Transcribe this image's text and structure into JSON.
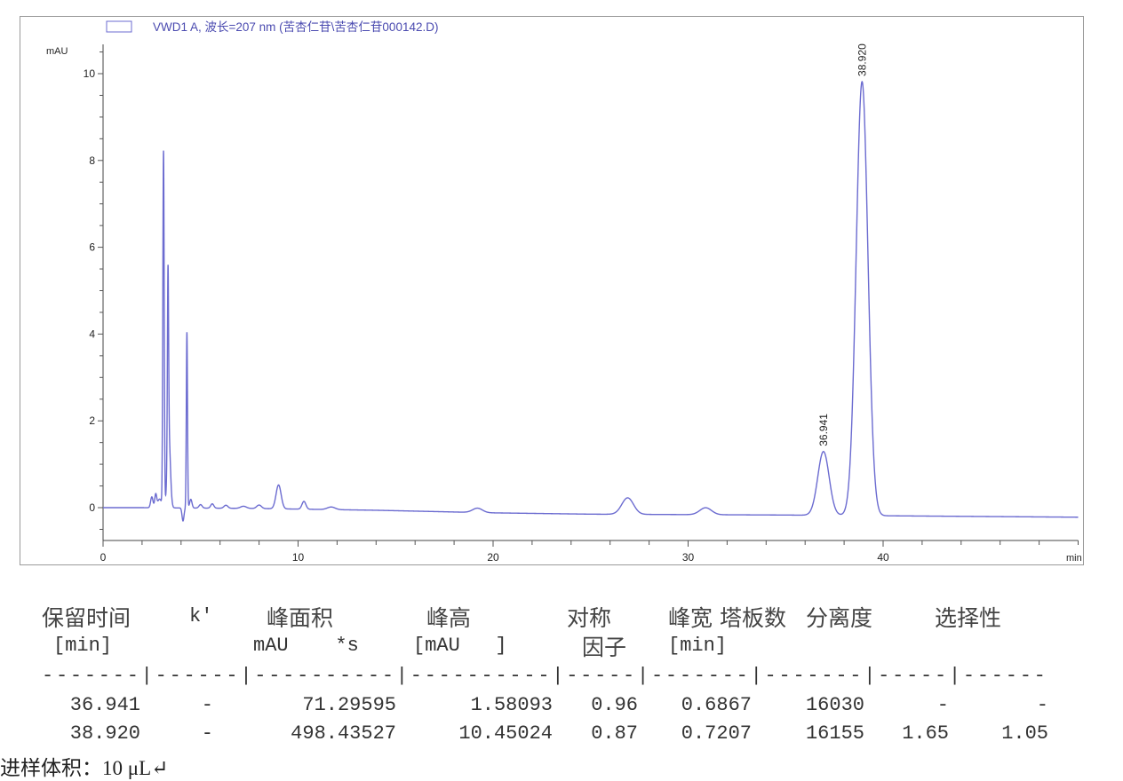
{
  "chart_data": {
    "type": "line",
    "legend": "VWD1 A, 波长=207 nm (苦杏仁苷\\苦杏仁苷000142.D)",
    "ylabel": "mAU",
    "xlabel": "min",
    "xlim": [
      0,
      50
    ],
    "ylim": [
      -0.8,
      10.8
    ],
    "x_ticks": [
      0,
      10,
      20,
      30,
      40
    ],
    "y_ticks": [
      0,
      2,
      4,
      6,
      8,
      10
    ],
    "grid": false,
    "legend_position": "top-left",
    "line_color": "#6b6bd0",
    "baseline": [
      [
        0,
        0
      ],
      [
        2,
        0
      ],
      [
        8,
        -0.02
      ],
      [
        14,
        -0.06
      ],
      [
        20,
        -0.12
      ],
      [
        25,
        -0.15
      ],
      [
        35,
        -0.17
      ],
      [
        50,
        -0.22
      ]
    ],
    "peaks": [
      {
        "rt": 2.5,
        "height": 0.25,
        "width": 0.06
      },
      {
        "rt": 2.7,
        "height": 0.3,
        "width": 0.05
      },
      {
        "rt": 2.9,
        "height": 0.2,
        "width": 0.1
      },
      {
        "rt": 3.1,
        "height": 8.2,
        "width": 0.035
      },
      {
        "rt": 3.33,
        "height": 4.1,
        "width": 0.03
      },
      {
        "rt": 3.37,
        "height": 1.7,
        "width": 0.08
      },
      {
        "rt": 4.1,
        "height": -0.3,
        "width": 0.05
      },
      {
        "rt": 4.3,
        "height": 4.05,
        "width": 0.03
      },
      {
        "rt": 4.5,
        "height": 0.2,
        "width": 0.06
      },
      {
        "rt": 5.0,
        "height": 0.08,
        "width": 0.08
      },
      {
        "rt": 5.6,
        "height": 0.1,
        "width": 0.08
      },
      {
        "rt": 6.3,
        "height": 0.07,
        "width": 0.1
      },
      {
        "rt": 7.2,
        "height": 0.05,
        "width": 0.15
      },
      {
        "rt": 8.0,
        "height": 0.08,
        "width": 0.12
      },
      {
        "rt": 9.0,
        "height": 0.55,
        "width": 0.13
      },
      {
        "rt": 10.3,
        "height": 0.18,
        "width": 0.1
      },
      {
        "rt": 11.7,
        "height": 0.06,
        "width": 0.2
      },
      {
        "rt": 19.2,
        "height": 0.1,
        "width": 0.25
      },
      {
        "rt": 26.9,
        "height": 0.38,
        "width": 0.3
      },
      {
        "rt": 30.9,
        "height": 0.16,
        "width": 0.3
      },
      {
        "rt": 36.941,
        "height": 1.47,
        "width": 0.29,
        "label": "36.941"
      },
      {
        "rt": 38.92,
        "height": 10.0,
        "width": 0.3,
        "label": "38.920"
      }
    ]
  },
  "table": {
    "header1": [
      "保留时间",
      "k'",
      "峰面积",
      "峰高",
      "对称",
      "峰宽",
      "塔板数",
      "分离度",
      "选择性"
    ],
    "header2": [
      "[min]",
      "mAU    *s",
      "[mAU   ]",
      "因子",
      "[min]"
    ],
    "separator": "-------|------|----------|----------|-----|-------|-------|-----|------",
    "rows": [
      [
        "36.941",
        "-",
        "71.29595",
        "1.58093",
        "0.96",
        "0.6867",
        "16030",
        "-",
        "-"
      ],
      [
        "38.920",
        "-",
        "498.43527",
        "10.45024",
        "0.87",
        "0.7207",
        "16155",
        "1.65",
        "1.05"
      ]
    ]
  },
  "footer": "进样体积：10 μL↵"
}
